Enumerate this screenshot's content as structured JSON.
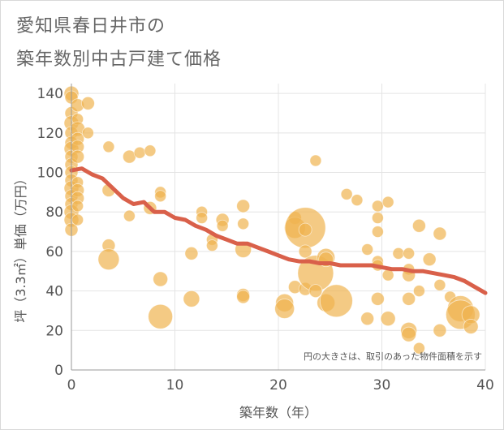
{
  "title_line1": "愛知県春日井市の",
  "title_line2": "築年数別中古戸建て価格",
  "chart_data": {
    "type": "scatter",
    "xlabel": "築年数（年）",
    "ylabel": "坪（3.3㎡）単価（万円）",
    "xlim": [
      0,
      40
    ],
    "ylim": [
      0,
      145
    ],
    "xticks": [
      0,
      10,
      20,
      30,
      40
    ],
    "yticks": [
      0,
      20,
      40,
      60,
      80,
      100,
      120,
      140
    ],
    "grid": true,
    "annotation": "円の大きさは、取引のあった物件面積を示す",
    "colors": {
      "bubble": "#f0b450",
      "trend": "#d9604a",
      "axis": "#999999",
      "grid": "#e4e4e4",
      "text": "#555555"
    },
    "points": [
      {
        "x": 0,
        "y": 140,
        "s": 9
      },
      {
        "x": 0,
        "y": 138,
        "s": 8
      },
      {
        "x": 0,
        "y": 130,
        "s": 8
      },
      {
        "x": 0,
        "y": 125,
        "s": 9
      },
      {
        "x": 0,
        "y": 120,
        "s": 8
      },
      {
        "x": 0,
        "y": 115,
        "s": 8
      },
      {
        "x": 0,
        "y": 112,
        "s": 9
      },
      {
        "x": 0,
        "y": 108,
        "s": 8
      },
      {
        "x": 0,
        "y": 104,
        "s": 8
      },
      {
        "x": 0,
        "y": 100,
        "s": 8
      },
      {
        "x": 0,
        "y": 96,
        "s": 8
      },
      {
        "x": 0,
        "y": 92,
        "s": 9
      },
      {
        "x": 0,
        "y": 88,
        "s": 8
      },
      {
        "x": 0,
        "y": 84,
        "s": 8
      },
      {
        "x": 0,
        "y": 80,
        "s": 9
      },
      {
        "x": 0,
        "y": 76,
        "s": 9
      },
      {
        "x": 0,
        "y": 71,
        "s": 8
      },
      {
        "x": 0.6,
        "y": 134,
        "s": 8
      },
      {
        "x": 0.6,
        "y": 127,
        "s": 7
      },
      {
        "x": 0.6,
        "y": 122,
        "s": 9
      },
      {
        "x": 0.6,
        "y": 117,
        "s": 8
      },
      {
        "x": 0.6,
        "y": 113,
        "s": 8
      },
      {
        "x": 0.6,
        "y": 108,
        "s": 8
      },
      {
        "x": 0.6,
        "y": 95,
        "s": 7
      },
      {
        "x": 0.6,
        "y": 91,
        "s": 8
      },
      {
        "x": 0.6,
        "y": 87,
        "s": 8
      },
      {
        "x": 0.6,
        "y": 83,
        "s": 7
      },
      {
        "x": 0.6,
        "y": 76,
        "s": 7
      },
      {
        "x": 1.6,
        "y": 135,
        "s": 8
      },
      {
        "x": 1.6,
        "y": 120,
        "s": 7
      },
      {
        "x": 3.6,
        "y": 113,
        "s": 7
      },
      {
        "x": 3.6,
        "y": 91,
        "s": 8
      },
      {
        "x": 3.6,
        "y": 63,
        "s": 8
      },
      {
        "x": 3.6,
        "y": 56,
        "s": 13
      },
      {
        "x": 5.6,
        "y": 108,
        "s": 8
      },
      {
        "x": 5.6,
        "y": 78,
        "s": 7
      },
      {
        "x": 6.6,
        "y": 110,
        "s": 7
      },
      {
        "x": 7.6,
        "y": 111,
        "s": 7
      },
      {
        "x": 7.6,
        "y": 82,
        "s": 8
      },
      {
        "x": 8.6,
        "y": 90,
        "s": 7
      },
      {
        "x": 8.6,
        "y": 88,
        "s": 7
      },
      {
        "x": 8.6,
        "y": 46,
        "s": 9
      },
      {
        "x": 8.6,
        "y": 27,
        "s": 15
      },
      {
        "x": 11.6,
        "y": 59,
        "s": 8
      },
      {
        "x": 11.6,
        "y": 36,
        "s": 10
      },
      {
        "x": 12.6,
        "y": 80,
        "s": 7
      },
      {
        "x": 12.6,
        "y": 77,
        "s": 7
      },
      {
        "x": 13.6,
        "y": 66,
        "s": 7
      },
      {
        "x": 13.6,
        "y": 63,
        "s": 7
      },
      {
        "x": 14.6,
        "y": 76,
        "s": 8
      },
      {
        "x": 14.6,
        "y": 73,
        "s": 7
      },
      {
        "x": 16.6,
        "y": 83,
        "s": 8
      },
      {
        "x": 16.6,
        "y": 74,
        "s": 7
      },
      {
        "x": 16.6,
        "y": 61,
        "s": 10
      },
      {
        "x": 16.6,
        "y": 38,
        "s": 8
      },
      {
        "x": 16.6,
        "y": 37,
        "s": 8
      },
      {
        "x": 20.6,
        "y": 34,
        "s": 11
      },
      {
        "x": 20.6,
        "y": 31,
        "s": 12
      },
      {
        "x": 21.6,
        "y": 77,
        "s": 8
      },
      {
        "x": 21.6,
        "y": 72,
        "s": 13
      },
      {
        "x": 21.6,
        "y": 42,
        "s": 8
      },
      {
        "x": 22.6,
        "y": 72,
        "s": 25
      },
      {
        "x": 22.6,
        "y": 71,
        "s": 8
      },
      {
        "x": 22.6,
        "y": 60,
        "s": 8
      },
      {
        "x": 22.6,
        "y": 41,
        "s": 8
      },
      {
        "x": 23.6,
        "y": 106,
        "s": 7
      },
      {
        "x": 23.6,
        "y": 49,
        "s": 22
      },
      {
        "x": 23.6,
        "y": 40,
        "s": 8
      },
      {
        "x": 24.6,
        "y": 57,
        "s": 11
      },
      {
        "x": 24.6,
        "y": 56,
        "s": 9
      },
      {
        "x": 24.6,
        "y": 34,
        "s": 11
      },
      {
        "x": 25.6,
        "y": 35,
        "s": 20
      },
      {
        "x": 26.6,
        "y": 89,
        "s": 7
      },
      {
        "x": 27.6,
        "y": 86,
        "s": 7
      },
      {
        "x": 28.6,
        "y": 61,
        "s": 7
      },
      {
        "x": 28.6,
        "y": 26,
        "s": 8
      },
      {
        "x": 29.6,
        "y": 83,
        "s": 7
      },
      {
        "x": 29.6,
        "y": 77,
        "s": 7
      },
      {
        "x": 29.6,
        "y": 70,
        "s": 7
      },
      {
        "x": 29.6,
        "y": 55,
        "s": 7
      },
      {
        "x": 29.6,
        "y": 53,
        "s": 7
      },
      {
        "x": 29.6,
        "y": 36,
        "s": 8
      },
      {
        "x": 30.6,
        "y": 85,
        "s": 7
      },
      {
        "x": 30.6,
        "y": 48,
        "s": 7
      },
      {
        "x": 30.6,
        "y": 26,
        "s": 9
      },
      {
        "x": 31.6,
        "y": 59,
        "s": 7
      },
      {
        "x": 32.6,
        "y": 59,
        "s": 7
      },
      {
        "x": 32.6,
        "y": 51,
        "s": 7
      },
      {
        "x": 32.6,
        "y": 48,
        "s": 8
      },
      {
        "x": 32.6,
        "y": 36,
        "s": 8
      },
      {
        "x": 32.6,
        "y": 20,
        "s": 10
      },
      {
        "x": 32.6,
        "y": 18,
        "s": 9
      },
      {
        "x": 33.6,
        "y": 73,
        "s": 8
      },
      {
        "x": 33.6,
        "y": 40,
        "s": 7
      },
      {
        "x": 33.6,
        "y": 11,
        "s": 7
      },
      {
        "x": 34.6,
        "y": 56,
        "s": 8
      },
      {
        "x": 35.6,
        "y": 69,
        "s": 8
      },
      {
        "x": 35.6,
        "y": 43,
        "s": 7
      },
      {
        "x": 35.6,
        "y": 20,
        "s": 8
      },
      {
        "x": 36.6,
        "y": 37,
        "s": 7
      },
      {
        "x": 37.6,
        "y": 31,
        "s": 16
      },
      {
        "x": 37.6,
        "y": 28,
        "s": 18
      },
      {
        "x": 38.6,
        "y": 28,
        "s": 11
      },
      {
        "x": 38.6,
        "y": 22,
        "s": 9
      }
    ],
    "trend": {
      "x": [
        0,
        1,
        2,
        3,
        4,
        5,
        6,
        7,
        8,
        9,
        10,
        11,
        12,
        13,
        14,
        15,
        16,
        17,
        18,
        19,
        20,
        21,
        22,
        23,
        24,
        25,
        26,
        27,
        28,
        29,
        30,
        31,
        32,
        33,
        34,
        35,
        36,
        37,
        38,
        39,
        40
      ],
      "y": [
        101,
        102,
        99,
        97,
        92,
        87,
        84,
        85,
        80,
        80,
        77,
        76,
        73,
        71,
        68,
        66,
        64,
        64,
        62,
        60,
        58,
        56,
        55,
        55,
        54,
        54,
        53,
        53,
        53,
        53,
        52,
        51,
        51,
        50,
        50,
        49,
        48,
        47,
        45,
        42,
        39
      ]
    }
  }
}
